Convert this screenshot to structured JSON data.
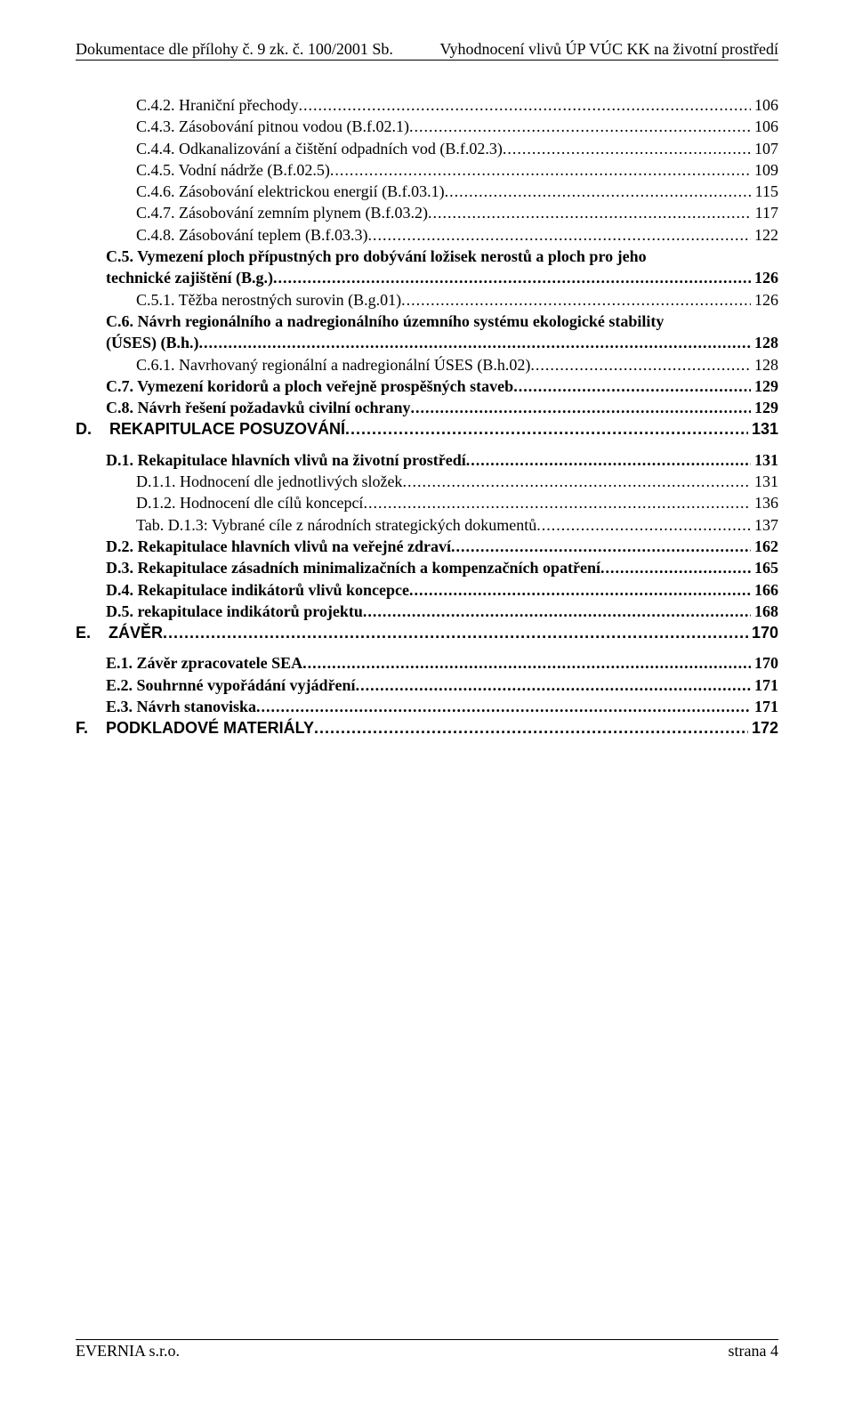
{
  "header": {
    "left": "Dokumentace dle přílohy č. 9 zk. č. 100/2001 Sb.",
    "right": "Vyhodnocení vlivů ÚP VÚC KK na životní prostředí"
  },
  "footer": {
    "left": "EVERNIA s.r.o.",
    "right": "strana 4"
  },
  "toc": [
    {
      "indent": 2,
      "bold": false,
      "sect": false,
      "label": "C.4.2. Hraniční přechody",
      "page": "106"
    },
    {
      "indent": 2,
      "bold": false,
      "sect": false,
      "label": "C.4.3. Zásobování pitnou vodou (B.f.02.1)",
      "page": "106"
    },
    {
      "indent": 2,
      "bold": false,
      "sect": false,
      "label": "C.4.4. Odkanalizování a čištění odpadních vod (B.f.02.3)",
      "page": "107"
    },
    {
      "indent": 2,
      "bold": false,
      "sect": false,
      "label": "C.4.5. Vodní nádrže (B.f.02.5)",
      "page": "109"
    },
    {
      "indent": 2,
      "bold": false,
      "sect": false,
      "label": "C.4.6. Zásobování elektrickou energií (B.f.03.1)",
      "page": "115"
    },
    {
      "indent": 2,
      "bold": false,
      "sect": false,
      "label": "C.4.7. Zásobování zemním plynem (B.f.03.2)",
      "page": "117"
    },
    {
      "indent": 2,
      "bold": false,
      "sect": false,
      "label": "C.4.8. Zásobování teplem (B.f.03.3)",
      "page": "122"
    },
    {
      "indent": 1,
      "bold": true,
      "sect": false,
      "wrap": true,
      "label_a": "C.5. Vymezení ploch přípustných pro dobývání ložisek nerostů a ploch pro jeho",
      "label_b": "technické zajištění (B.g.)",
      "page": "126"
    },
    {
      "indent": 2,
      "bold": false,
      "sect": false,
      "label": "C.5.1. Těžba nerostných surovin (B.g.01)",
      "page": "126"
    },
    {
      "indent": 1,
      "bold": true,
      "sect": false,
      "wrap": true,
      "label_a": "C.6. Návrh regionálního a nadregionálního územního systému ekologické stability",
      "label_b": "(ÚSES) (B.h.)",
      "page": "128"
    },
    {
      "indent": 2,
      "bold": false,
      "sect": false,
      "label": "C.6.1. Navrhovaný regionální a nadregionální ÚSES (B.h.02)",
      "page": "128"
    },
    {
      "indent": 1,
      "bold": true,
      "sect": false,
      "label": "C.7. Vymezení koridorů a ploch veřejně prospěšných staveb",
      "page": "129"
    },
    {
      "indent": 1,
      "bold": true,
      "sect": false,
      "label": "C.8. Návrh řešení požadavků civilní ochrany",
      "page": "129"
    },
    {
      "indent": 0,
      "bold": true,
      "sect": true,
      "label": "D.    REKAPITULACE POSUZOVÁNÍ",
      "page": "131",
      "gap_after": true
    },
    {
      "indent": 1,
      "bold": true,
      "sect": false,
      "label": "D.1. Rekapitulace hlavních vlivů na životní prostředí",
      "page": "131"
    },
    {
      "indent": 2,
      "bold": false,
      "sect": false,
      "label": "D.1.1. Hodnocení dle jednotlivých složek",
      "page": "131"
    },
    {
      "indent": 2,
      "bold": false,
      "sect": false,
      "label": "D.1.2. Hodnocení dle cílů koncepcí",
      "page": "136"
    },
    {
      "indent": 2,
      "bold": false,
      "sect": false,
      "label": "Tab. D.1.3: Vybrané cíle z národních strategických dokumentů",
      "page": "137"
    },
    {
      "indent": 1,
      "bold": true,
      "sect": false,
      "label": "D.2. Rekapitulace hlavních vlivů na veřejné zdraví",
      "page": "162"
    },
    {
      "indent": 1,
      "bold": true,
      "sect": false,
      "label": "D.3. Rekapitulace zásadních minimalizačních a kompenzačních opatření",
      "page": "165"
    },
    {
      "indent": 1,
      "bold": true,
      "sect": false,
      "label": "D.4. Rekapitulace indikátorů vlivů koncepce",
      "page": "166"
    },
    {
      "indent": 1,
      "bold": true,
      "sect": false,
      "label": "D.5. rekapitulace indikátorů projektu",
      "page": "168"
    },
    {
      "indent": 0,
      "bold": true,
      "sect": true,
      "label": "E.    ZÁVĚR",
      "page": "170",
      "gap_after": true
    },
    {
      "indent": 1,
      "bold": true,
      "sect": false,
      "label": "E.1. Závěr zpracovatele SEA",
      "page": "170"
    },
    {
      "indent": 1,
      "bold": true,
      "sect": false,
      "label": "E.2. Souhrnné vypořádání vyjádření",
      "page": "171"
    },
    {
      "indent": 1,
      "bold": true,
      "sect": false,
      "label": "E.3. Návrh stanoviska",
      "page": "171"
    },
    {
      "indent": 0,
      "bold": true,
      "sect": true,
      "label": "F.    PODKLADOVÉ MATERIÁLY",
      "page": "172"
    }
  ]
}
